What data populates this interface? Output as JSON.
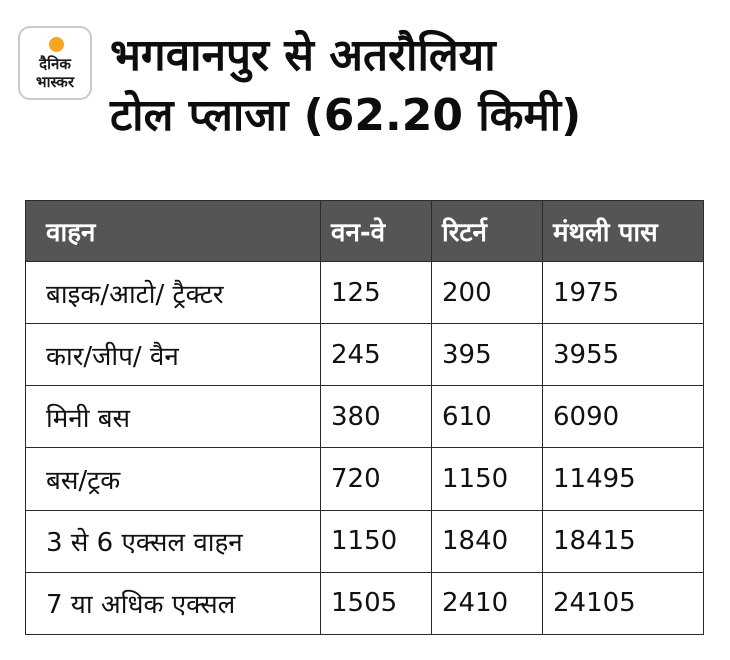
{
  "logo": {
    "line1": "दैनिक",
    "line2": "भास्कर"
  },
  "title": {
    "line1": "भगवानपुर से अतरौलिया",
    "line2": "टोल प्लाजा (62.20 किमी)"
  },
  "table": {
    "headers": [
      "वाहन",
      "वन-वे",
      "रिटर्न",
      "मंथली पास"
    ],
    "rows": [
      [
        "बाइक/आटो/ ट्रैक्टर",
        "125",
        "200",
        "1975"
      ],
      [
        "कार/जीप/ वैन",
        "245",
        "395",
        "3955"
      ],
      [
        "मिनी बस",
        "380",
        "610",
        "6090"
      ],
      [
        "बस/ट्रक",
        "720",
        "1150",
        "11495"
      ],
      [
        "3 से 6 एक्सल वाहन",
        "1150",
        "1840",
        "18415"
      ],
      [
        "7 या अधिक एक्सल",
        "1505",
        "2410",
        "24105"
      ]
    ]
  },
  "colors": {
    "header_bg": "#555555",
    "logo_sun": "#f5a623"
  }
}
